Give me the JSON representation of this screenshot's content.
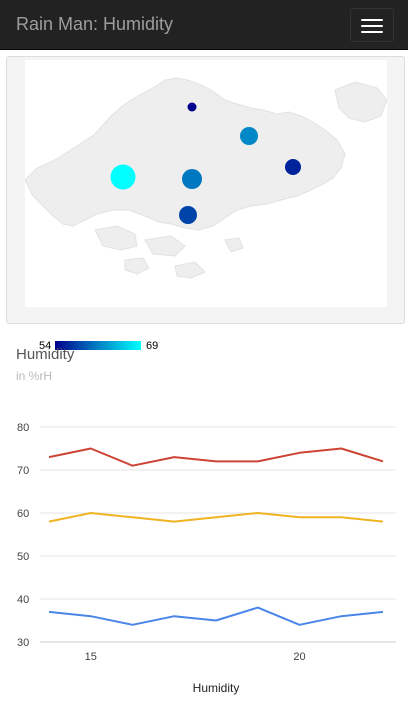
{
  "navbar": {
    "title": "Rain Man: Humidity",
    "menu_icon": "hamburger-menu-icon"
  },
  "map": {
    "scale_min": "54",
    "scale_max": "69",
    "stations": [
      {
        "value": 54
      },
      {
        "value": 62
      },
      {
        "value": 56
      },
      {
        "value": 69
      },
      {
        "value": 61
      },
      {
        "value": 58
      }
    ]
  },
  "chart": {
    "title": "Humidity",
    "subtitle": "in %rH"
  },
  "chart_data": {
    "type": "line",
    "x": [
      14,
      15,
      16,
      17,
      18,
      19,
      20,
      21,
      22
    ],
    "xticks": [
      "15",
      "20"
    ],
    "yticks": [
      "30",
      "40",
      "50",
      "60",
      "70",
      "80"
    ],
    "ylim": [
      30,
      80
    ],
    "xlabel": "Humidity",
    "series": [
      {
        "color": "#cc4433",
        "values": [
          73,
          75,
          71,
          73,
          72,
          72,
          74,
          75,
          72
        ]
      },
      {
        "color": "#f0b323",
        "values": [
          58,
          60,
          59,
          58,
          59,
          60,
          59,
          59,
          58
        ]
      },
      {
        "color": "#4a86e8",
        "values": [
          37,
          36,
          34,
          36,
          35,
          38,
          34,
          36,
          37
        ]
      }
    ]
  }
}
